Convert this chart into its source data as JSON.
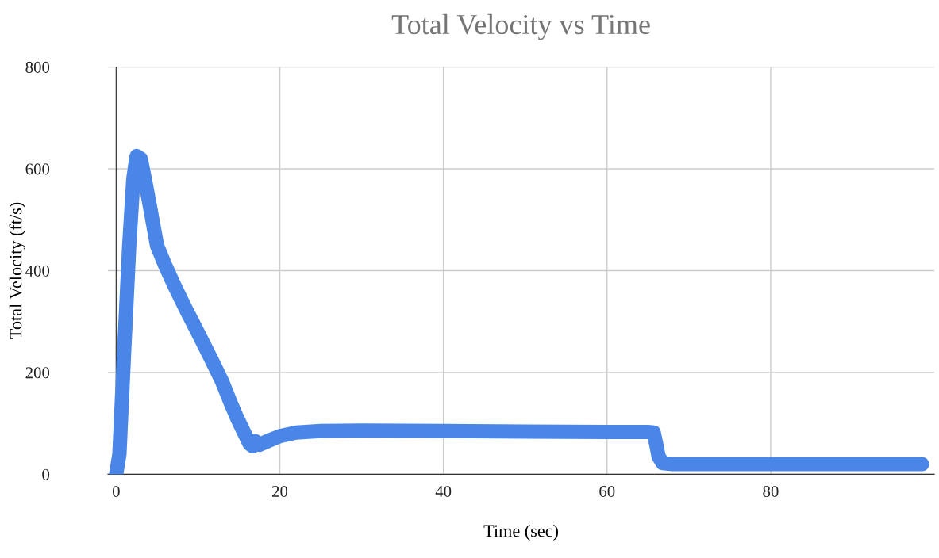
{
  "chart_data": {
    "type": "line",
    "title": "Total Velocity vs Time",
    "xlabel": "Time (sec)",
    "ylabel": "Total Velocity (ft/s)",
    "series": [
      {
        "color": "#4a86e8",
        "x": [
          0,
          0.4,
          1.0,
          1.6,
          2.1,
          2.5,
          3.0,
          3.5,
          4.2,
          5.0,
          6.0,
          7.1,
          8.5,
          10.0,
          11.5,
          12.9,
          14.0,
          14.8,
          15.7,
          16.3,
          16.7,
          17.0,
          17.5,
          18.5,
          20,
          22,
          25,
          30,
          40,
          50,
          60,
          65,
          65.7,
          66.0,
          66.3,
          66.8,
          68,
          75,
          85,
          98.5
        ],
        "values": [
          0,
          40,
          250,
          450,
          580,
          625,
          620,
          580,
          520,
          449,
          410,
          371,
          325,
          278,
          230,
          184,
          140,
          110,
          80,
          60,
          55,
          65,
          58,
          65,
          75,
          82,
          85,
          86,
          85,
          84,
          83,
          83,
          82,
          60,
          35,
          22,
          20,
          20,
          20,
          20
        ]
      }
    ],
    "xlim": [
      -1,
      100
    ],
    "ylim": [
      0,
      800
    ],
    "xticks": [
      0,
      20,
      40,
      60,
      80
    ],
    "yticks": [
      0,
      200,
      400,
      600,
      800
    ],
    "grid": true,
    "legend": false,
    "marker": "none",
    "line_style": "solid"
  }
}
